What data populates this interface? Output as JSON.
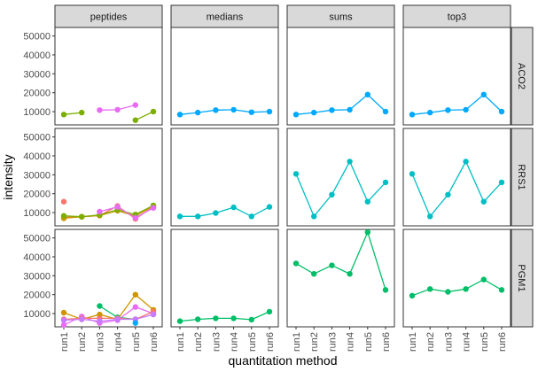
{
  "chart_data": {
    "type": "line",
    "xlabel": "quantitation method",
    "ylabel": "intensity",
    "categories": [
      "run1",
      "run2",
      "run3",
      "run4",
      "run5",
      "run6"
    ],
    "y_ticks": [
      10000,
      20000,
      30000,
      40000,
      50000
    ],
    "y_tick_labels": [
      "10000",
      "20000",
      "30000",
      "40000",
      "50000"
    ],
    "ylim": [
      3000,
      54500
    ],
    "grid": false,
    "legend": "none",
    "facet_columns": [
      "peptides",
      "medians",
      "sums",
      "top3"
    ],
    "facet_rows": [
      "ACO2",
      "RRS1",
      "PGM1"
    ],
    "colors": {
      "olive": "#7CAE00",
      "magenta": "#E76BF3",
      "teal": "#00BFC4",
      "blue": "#00A9FF",
      "green": "#00BE67",
      "red": "#F8766D",
      "gold": "#CD9600",
      "purple": "#C77CFF"
    },
    "panels": {
      "ACO2": {
        "peptides": [
          {
            "color": "olive",
            "points": [
              [
                1,
                8500
              ],
              [
                2,
                9500
              ]
            ]
          },
          {
            "color": "magenta",
            "points": [
              [
                3,
                10800
              ],
              [
                4,
                11000
              ],
              [
                5,
                13500
              ]
            ]
          },
          {
            "color": "olive",
            "points": [
              [
                5,
                5500
              ],
              [
                6,
                10000
              ]
            ]
          }
        ],
        "medians": [
          {
            "color": "blue",
            "points": [
              [
                1,
                8500
              ],
              [
                2,
                9500
              ],
              [
                3,
                10800
              ],
              [
                4,
                11000
              ],
              [
                5,
                9700
              ],
              [
                6,
                10000
              ]
            ]
          }
        ],
        "sums": [
          {
            "color": "blue",
            "points": [
              [
                1,
                8500
              ],
              [
                2,
                9500
              ],
              [
                3,
                10800
              ],
              [
                4,
                11000
              ],
              [
                5,
                19000
              ],
              [
                6,
                10000
              ]
            ]
          }
        ],
        "top3": [
          {
            "color": "blue",
            "points": [
              [
                1,
                8500
              ],
              [
                2,
                9500
              ],
              [
                3,
                10800
              ],
              [
                4,
                11000
              ],
              [
                5,
                19000
              ],
              [
                6,
                10000
              ]
            ]
          }
        ]
      },
      "RRS1": {
        "peptides": [
          {
            "color": "red",
            "points": [
              [
                1,
                15800
              ]
            ]
          },
          {
            "color": "red",
            "points": [
              [
                1,
                7500
              ],
              [
                2,
                7800
              ],
              [
                3,
                8500
              ],
              [
                4,
                13500
              ],
              [
                5,
                6700
              ],
              [
                6,
                13000
              ]
            ]
          },
          {
            "color": "gold",
            "points": [
              [
                1,
                7000
              ],
              [
                2,
                7800
              ],
              [
                3,
                8500
              ],
              [
                4,
                11000
              ],
              [
                5,
                8200
              ],
              [
                6,
                13500
              ]
            ]
          },
          {
            "color": "olive",
            "points": [
              [
                1,
                8300
              ],
              [
                2,
                7800
              ],
              [
                3,
                8800
              ],
              [
                4,
                11500
              ],
              [
                5,
                9000
              ],
              [
                6,
                13800
              ]
            ]
          },
          {
            "color": "magenta",
            "points": [
              [
                3,
                10500
              ],
              [
                4,
                13000
              ],
              [
                5,
                7200
              ],
              [
                6,
                12500
              ]
            ]
          }
        ],
        "medians": [
          {
            "color": "teal",
            "points": [
              [
                1,
                8000
              ],
              [
                2,
                8000
              ],
              [
                3,
                9800
              ],
              [
                4,
                12800
              ],
              [
                5,
                8000
              ],
              [
                6,
                13000
              ]
            ]
          }
        ],
        "sums": [
          {
            "color": "teal",
            "points": [
              [
                1,
                30500
              ],
              [
                2,
                8000
              ],
              [
                3,
                19500
              ],
              [
                4,
                37000
              ],
              [
                5,
                15800
              ],
              [
                6,
                26000
              ]
            ]
          }
        ],
        "top3": [
          {
            "color": "teal",
            "points": [
              [
                1,
                30500
              ],
              [
                2,
                8000
              ],
              [
                3,
                19500
              ],
              [
                4,
                37000
              ],
              [
                5,
                15800
              ],
              [
                6,
                26000
              ]
            ]
          }
        ]
      },
      "PGM1": {
        "peptides": [
          {
            "color": "gold",
            "points": [
              [
                1,
                10500
              ],
              [
                2,
                7000
              ],
              [
                3,
                9500
              ],
              [
                4,
                7000
              ],
              [
                5,
                20000
              ],
              [
                6,
                12000
              ]
            ]
          },
          {
            "color": "green",
            "points": [
              [
                3,
                14000
              ],
              [
                4,
                8000
              ],
              [
                5,
                7000
              ]
            ]
          },
          {
            "color": "magenta",
            "points": [
              [
                1,
                4000
              ],
              [
                2,
                8500
              ],
              [
                3,
                5000
              ],
              [
                4,
                6500
              ],
              [
                5,
                13500
              ],
              [
                6,
                10000
              ]
            ]
          },
          {
            "color": "red",
            "points": [
              [
                1,
                7000
              ],
              [
                2,
                7500
              ],
              [
                3,
                7500
              ],
              [
                4,
                7500
              ],
              [
                5,
                7000
              ],
              [
                6,
                11000
              ]
            ]
          },
          {
            "color": "purple",
            "points": [
              [
                1,
                6500
              ],
              [
                2,
                7000
              ],
              [
                3,
                6000
              ],
              [
                4,
                7000
              ],
              [
                5,
                7000
              ],
              [
                6,
                9500
              ]
            ]
          },
          {
            "color": "blue",
            "points": [
              [
                5,
                5000
              ]
            ]
          }
        ],
        "medians": [
          {
            "color": "green",
            "points": [
              [
                1,
                6000
              ],
              [
                2,
                7000
              ],
              [
                3,
                7500
              ],
              [
                4,
                7500
              ],
              [
                5,
                6800
              ],
              [
                6,
                11000
              ]
            ]
          }
        ],
        "sums": [
          {
            "color": "green",
            "points": [
              [
                1,
                36500
              ],
              [
                2,
                31000
              ],
              [
                3,
                35500
              ],
              [
                4,
                31000
              ],
              [
                5,
                53000
              ],
              [
                6,
                22500
              ]
            ]
          }
        ],
        "top3": [
          {
            "color": "green",
            "points": [
              [
                1,
                19500
              ],
              [
                2,
                23000
              ],
              [
                3,
                21500
              ],
              [
                4,
                23000
              ],
              [
                5,
                28000
              ],
              [
                6,
                22500
              ]
            ]
          }
        ]
      }
    }
  }
}
